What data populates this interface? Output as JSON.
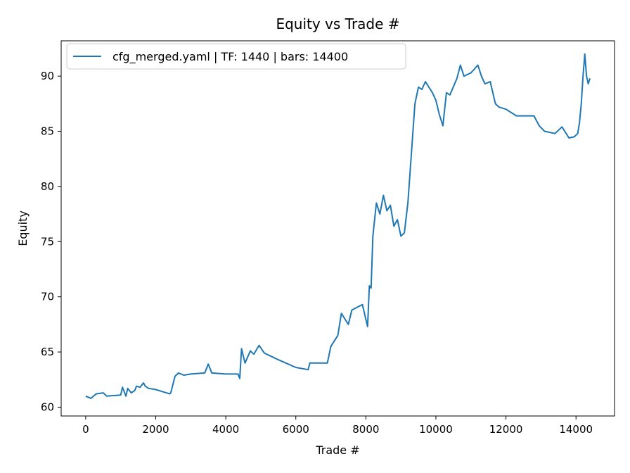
{
  "chart_data": {
    "type": "line",
    "title": "Equity vs Trade #",
    "xlabel": "Trade #",
    "ylabel": "Equity",
    "xlim": [
      -700,
      15100
    ],
    "ylim": [
      59.2,
      93.2
    ],
    "xticks": [
      0,
      2000,
      4000,
      6000,
      8000,
      10000,
      12000,
      14000
    ],
    "yticks": [
      60,
      65,
      70,
      75,
      80,
      85,
      90
    ],
    "grid": false,
    "legend_position": "upper-left",
    "colors": {
      "series": "#1f77b4",
      "axes": "#000000"
    },
    "series": [
      {
        "name": "cfg_merged.yaml | TF: 1440 | bars: 14400",
        "x": [
          0,
          150,
          300,
          500,
          600,
          1000,
          1050,
          1150,
          1200,
          1300,
          1400,
          1450,
          1550,
          1650,
          1700,
          1800,
          2000,
          2400,
          2430,
          2550,
          2650,
          2800,
          3000,
          3400,
          3500,
          3600,
          4000,
          4350,
          4400,
          4450,
          4550,
          4700,
          4800,
          4950,
          5100,
          5500,
          6000,
          6350,
          6400,
          6900,
          7000,
          7200,
          7300,
          7500,
          7600,
          7900,
          8050,
          8100,
          8150,
          8200,
          8300,
          8400,
          8500,
          8600,
          8700,
          8800,
          8900,
          9000,
          9100,
          9200,
          9300,
          9400,
          9500,
          9600,
          9700,
          9900,
          10000,
          10100,
          10200,
          10300,
          10400,
          10600,
          10700,
          10800,
          11000,
          11200,
          11300,
          11400,
          11550,
          11700,
          11800,
          12000,
          12300,
          12800,
          12950,
          13100,
          13400,
          13600,
          13800,
          13950,
          14050,
          14100,
          14150,
          14200,
          14250,
          14300,
          14350,
          14400
        ],
        "y": [
          61.0,
          60.8,
          61.2,
          61.3,
          61.0,
          61.1,
          61.8,
          61.0,
          61.7,
          61.3,
          61.5,
          61.9,
          61.8,
          62.2,
          61.9,
          61.7,
          61.6,
          61.2,
          61.3,
          62.8,
          63.1,
          62.9,
          63.0,
          63.1,
          63.9,
          63.1,
          63.0,
          63.0,
          62.6,
          65.3,
          64.0,
          65.1,
          64.8,
          65.6,
          64.9,
          64.3,
          63.6,
          63.4,
          64.0,
          64.0,
          65.5,
          66.5,
          68.5,
          67.5,
          68.8,
          69.3,
          67.3,
          71.0,
          70.8,
          75.5,
          78.5,
          77.5,
          79.2,
          77.8,
          78.3,
          76.4,
          77.0,
          75.5,
          75.8,
          78.5,
          83.0,
          87.5,
          89.0,
          88.8,
          89.5,
          88.5,
          87.8,
          86.5,
          85.5,
          88.5,
          88.3,
          89.8,
          91.0,
          90.0,
          90.3,
          91.0,
          90.0,
          89.3,
          89.5,
          87.5,
          87.2,
          87.0,
          86.4,
          86.4,
          85.5,
          85.0,
          84.8,
          85.4,
          84.4,
          84.5,
          84.8,
          85.8,
          87.5,
          90.0,
          92.0,
          90.0,
          89.3,
          89.8
        ]
      }
    ]
  }
}
